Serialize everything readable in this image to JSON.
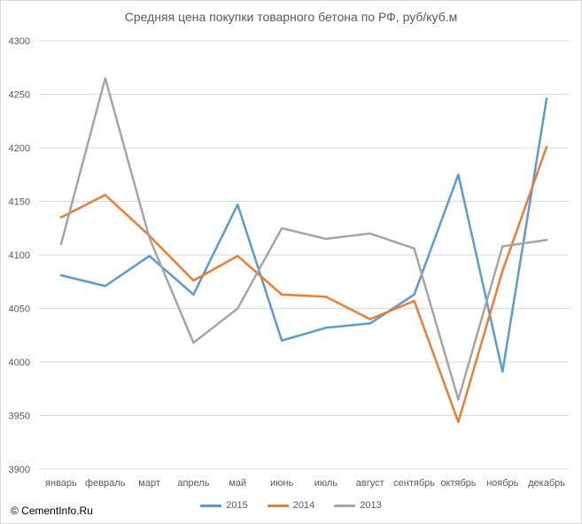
{
  "chart_data": {
    "type": "line",
    "title": "Средняя цена покупки товарного бетона по РФ, руб/куб.м",
    "categories": [
      "январь",
      "февраль",
      "март",
      "апрель",
      "май",
      "июнь",
      "июль",
      "август",
      "сентябрь",
      "октябрь",
      "ноябрь",
      "декабрь"
    ],
    "ylim": [
      3900,
      4300
    ],
    "yticks": [
      "3900",
      "3950",
      "4000",
      "4050",
      "4100",
      "4150",
      "4200",
      "4250",
      "4300"
    ],
    "grid": true,
    "legend_position": "bottom",
    "series": [
      {
        "name": "2015",
        "color": "#5b9bd5",
        "values": [
          4081,
          4071,
          4099,
          4063,
          4147,
          4020,
          4032,
          4036,
          4063,
          4175,
          3991,
          4246
        ]
      },
      {
        "name": "2014",
        "color": "#ed7d31",
        "values": [
          4135,
          4156,
          4118,
          4076,
          4099,
          4063,
          4061,
          4040,
          4057,
          3944,
          4085,
          4201
        ]
      },
      {
        "name": "2013",
        "color": "#a5a5a5",
        "values": [
          4110,
          4265,
          4116,
          4018,
          4050,
          4125,
          4115,
          4120,
          4106,
          3965,
          4108,
          4114
        ]
      }
    ]
  },
  "source": "© CementInfo.Ru"
}
